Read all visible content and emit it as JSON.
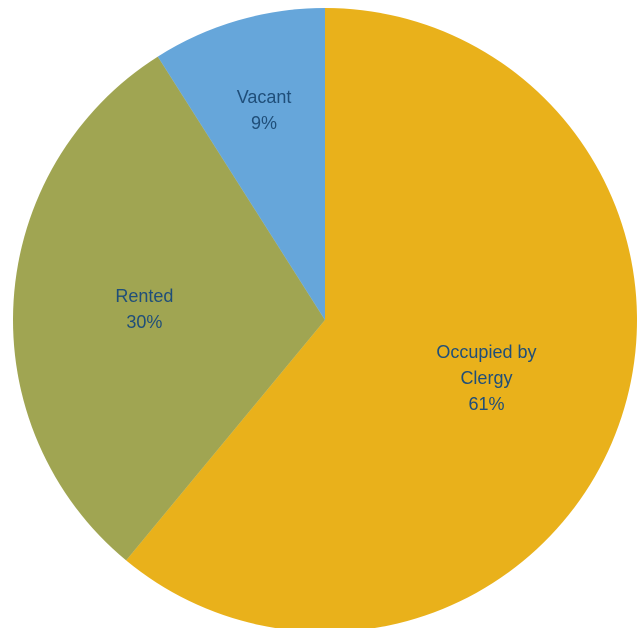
{
  "chart_data": {
    "type": "pie",
    "categories": [
      "Occupied by Clergy",
      "Rented",
      "Vacant"
    ],
    "values": [
      61,
      30,
      9
    ],
    "value_labels": [
      "61%",
      "30%",
      "9%"
    ],
    "colors": [
      "#E9B11B",
      "#A0A552",
      "#66A6DA"
    ]
  }
}
